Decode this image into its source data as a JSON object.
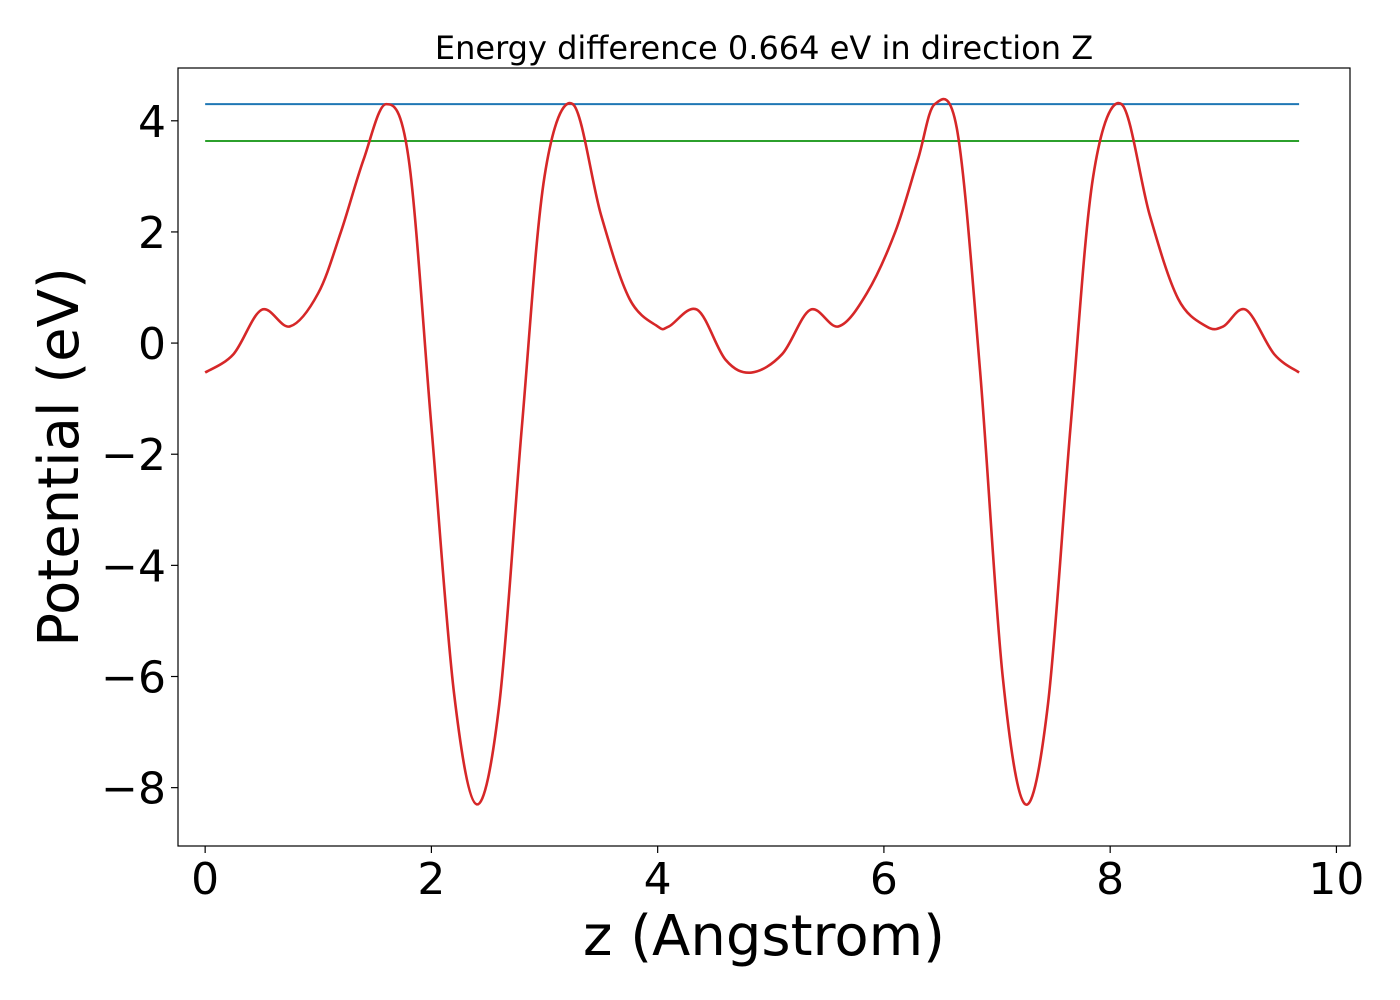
{
  "chart_data": {
    "type": "line",
    "title": "Energy difference 0.664 eV in direction Z",
    "xlabel": "z (Angstrom)",
    "ylabel": "Potential (eV)",
    "xlim": [
      -0.24,
      10.12
    ],
    "ylim": [
      -9.05,
      4.95
    ],
    "xticks": [
      {
        "value": 0,
        "label": "0"
      },
      {
        "value": 2,
        "label": "2"
      },
      {
        "value": 4,
        "label": "4"
      },
      {
        "value": 6,
        "label": "6"
      },
      {
        "value": 8,
        "label": "8"
      },
      {
        "value": 10,
        "label": "10"
      }
    ],
    "yticks": [
      {
        "value": 4,
        "label": "4"
      },
      {
        "value": 2,
        "label": "2"
      },
      {
        "value": 0,
        "label": "0"
      },
      {
        "value": -2,
        "label": "−2"
      },
      {
        "value": -4,
        "label": "−4"
      },
      {
        "value": -6,
        "label": "−6"
      },
      {
        "value": -8,
        "label": "−8"
      }
    ],
    "grid": false,
    "series": [
      {
        "color": "#1f77b4",
        "x": [
          0,
          9.67
        ],
        "y": [
          4.3,
          4.3
        ]
      },
      {
        "color": "#2ca02c",
        "x": [
          0,
          9.67
        ],
        "y": [
          3.636,
          3.636
        ]
      },
      {
        "color": "#d62728",
        "x": [
          0.0,
          0.25,
          0.5,
          0.75,
          1.0,
          1.2,
          1.4,
          1.6,
          1.8,
          2.0,
          2.2,
          2.4,
          2.6,
          2.8,
          3.0,
          3.25,
          3.5,
          3.75,
          4.0,
          4.1,
          4.35,
          4.6,
          4.83,
          5.1,
          5.35,
          5.6,
          5.85,
          6.1,
          6.3,
          6.45,
          6.65,
          6.85,
          7.05,
          7.25,
          7.45,
          7.65,
          7.85,
          8.1,
          8.35,
          8.6,
          8.85,
          9.0,
          9.2,
          9.45,
          9.67
        ],
        "y": [
          -0.53,
          -0.2,
          0.6,
          0.3,
          0.9,
          2.0,
          3.3,
          4.3,
          3.3,
          -1.5,
          -6.3,
          -8.3,
          -6.5,
          -1.5,
          3.0,
          4.3,
          2.3,
          0.8,
          0.3,
          0.3,
          0.6,
          -0.3,
          -0.53,
          -0.2,
          0.6,
          0.3,
          0.9,
          2.0,
          3.3,
          4.3,
          3.8,
          -0.5,
          -6.0,
          -8.3,
          -6.5,
          -1.5,
          3.0,
          4.3,
          2.3,
          0.8,
          0.3,
          0.3,
          0.6,
          -0.2,
          -0.53
        ]
      }
    ]
  }
}
